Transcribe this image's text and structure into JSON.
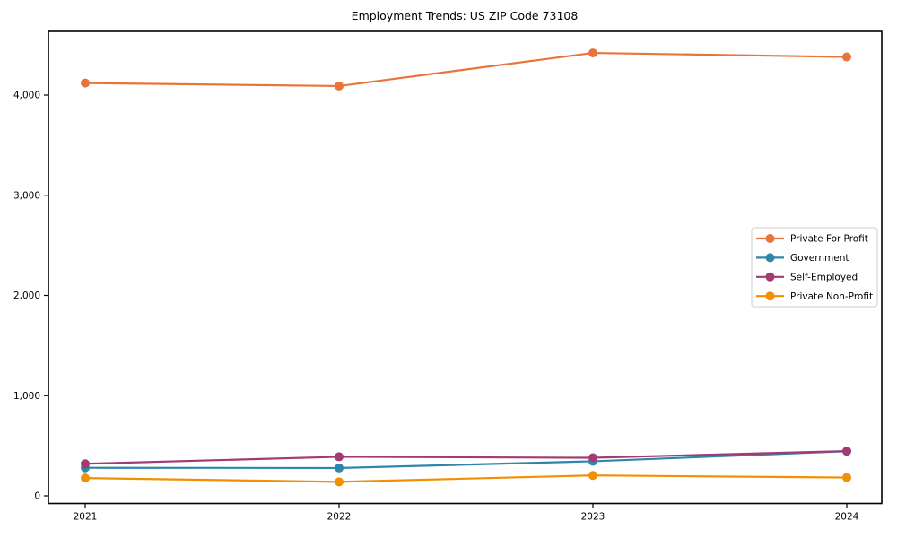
{
  "figure": {
    "title": "Employment Trends: US ZIP Code 73108"
  },
  "chart_data": {
    "type": "line",
    "title": "Employment Trends: US ZIP Code 73108",
    "xlabel": "",
    "ylabel": "",
    "x": [
      2021,
      2022,
      2023,
      2024
    ],
    "x_tick_labels": [
      "2021",
      "2022",
      "2023",
      "2024"
    ],
    "y_ticks": [
      {
        "value": 0,
        "label": "0"
      },
      {
        "value": 1000,
        "label": "1,000"
      },
      {
        "value": 2000,
        "label": "2,000"
      },
      {
        "value": 3000,
        "label": "3,000"
      },
      {
        "value": 4000,
        "label": "4,000"
      }
    ],
    "ylim": [
      -80,
      4635
    ],
    "grid": false,
    "legend": {
      "position": "center-right",
      "entries": [
        "Private For-Profit",
        "Government",
        "Self-Employed",
        "Private Non-Profit"
      ]
    },
    "series": [
      {
        "name": "Private For-Profit",
        "color": "#e8743b",
        "values": [
          4120,
          4090,
          4420,
          4380
        ]
      },
      {
        "name": "Government",
        "color": "#2e86ab",
        "values": [
          280,
          278,
          345,
          445
        ]
      },
      {
        "name": "Self-Employed",
        "color": "#a23b72",
        "values": [
          320,
          390,
          380,
          447
        ]
      },
      {
        "name": "Private Non-Profit",
        "color": "#f18f01",
        "values": [
          178,
          140,
          204,
          183
        ]
      }
    ],
    "colors": {
      "axes": "#000000",
      "background": "#ffffff",
      "legend_border": "#cccccc"
    }
  }
}
